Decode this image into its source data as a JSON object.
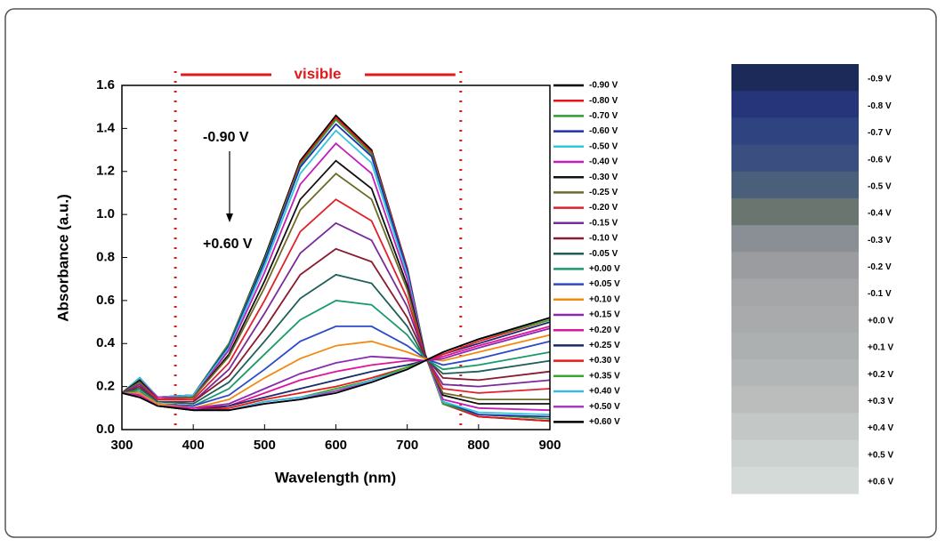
{
  "chart_data": {
    "type": "line",
    "x_label": "Wavelength (nm)",
    "y_label": "Absorbance (a.u.)",
    "xlim": [
      300,
      900
    ],
    "ylim": [
      0,
      1.6
    ],
    "xticks": [
      300,
      400,
      500,
      600,
      700,
      800,
      900
    ],
    "yticks": [
      {
        "value": 0,
        "label": "0.0"
      },
      0.2,
      0.4,
      0.6,
      0.8,
      {
        "value": 1,
        "label": "1.0"
      },
      1.2,
      1.4,
      1.6
    ],
    "annotations": {
      "range_label": "visible",
      "visible_range": [
        375,
        775
      ],
      "from_label": "-0.90 V",
      "to_label": "+0.60 V"
    },
    "x": [
      300,
      325,
      350,
      400,
      450,
      500,
      550,
      600,
      650,
      700,
      725,
      750,
      800,
      900
    ],
    "series": [
      {
        "name": "-0.90 V",
        "color": "#000000",
        "values": [
          0.17,
          0.24,
          0.15,
          0.16,
          0.4,
          0.8,
          1.25,
          1.46,
          1.3,
          0.75,
          0.35,
          0.12,
          0.06,
          0.04
        ]
      },
      {
        "name": "-0.80 V",
        "color": "#e8141c",
        "values": [
          0.17,
          0.24,
          0.15,
          0.16,
          0.4,
          0.79,
          1.24,
          1.45,
          1.29,
          0.75,
          0.35,
          0.12,
          0.06,
          0.04
        ]
      },
      {
        "name": "-0.70 V",
        "color": "#2e9e2e",
        "values": [
          0.17,
          0.24,
          0.15,
          0.16,
          0.4,
          0.79,
          1.23,
          1.44,
          1.28,
          0.74,
          0.35,
          0.12,
          0.07,
          0.05
        ]
      },
      {
        "name": "-0.60 V",
        "color": "#1f2fb0",
        "values": [
          0.17,
          0.24,
          0.15,
          0.16,
          0.39,
          0.78,
          1.22,
          1.42,
          1.27,
          0.74,
          0.35,
          0.13,
          0.07,
          0.06
        ]
      },
      {
        "name": "-0.50 V",
        "color": "#31c6d8",
        "values": [
          0.17,
          0.24,
          0.15,
          0.16,
          0.38,
          0.76,
          1.19,
          1.39,
          1.24,
          0.72,
          0.35,
          0.13,
          0.08,
          0.07
        ]
      },
      {
        "name": "-0.40 V",
        "color": "#c21fb8",
        "values": [
          0.17,
          0.23,
          0.15,
          0.15,
          0.37,
          0.73,
          1.14,
          1.33,
          1.19,
          0.7,
          0.35,
          0.14,
          0.1,
          0.09
        ]
      },
      {
        "name": "-0.30 V",
        "color": "#111111",
        "values": [
          0.17,
          0.23,
          0.14,
          0.15,
          0.35,
          0.69,
          1.07,
          1.25,
          1.12,
          0.67,
          0.35,
          0.16,
          0.12,
          0.12
        ]
      },
      {
        "name": "-0.25 V",
        "color": "#6b6b2a",
        "values": [
          0.17,
          0.22,
          0.14,
          0.15,
          0.34,
          0.66,
          1.02,
          1.19,
          1.07,
          0.65,
          0.34,
          0.17,
          0.14,
          0.14
        ]
      },
      {
        "name": "-0.20 V",
        "color": "#e0202a",
        "values": [
          0.17,
          0.21,
          0.14,
          0.14,
          0.31,
          0.6,
          0.92,
          1.07,
          0.97,
          0.61,
          0.34,
          0.19,
          0.17,
          0.19
        ]
      },
      {
        "name": "-0.15 V",
        "color": "#7a2a9a",
        "values": [
          0.17,
          0.21,
          0.13,
          0.13,
          0.28,
          0.54,
          0.82,
          0.96,
          0.88,
          0.57,
          0.34,
          0.21,
          0.2,
          0.23
        ]
      },
      {
        "name": "-0.10 V",
        "color": "#8a1a30",
        "values": [
          0.17,
          0.2,
          0.13,
          0.13,
          0.25,
          0.47,
          0.72,
          0.84,
          0.78,
          0.52,
          0.34,
          0.24,
          0.23,
          0.27
        ]
      },
      {
        "name": "-0.05 V",
        "color": "#1f5f5a",
        "values": [
          0.17,
          0.19,
          0.13,
          0.12,
          0.22,
          0.41,
          0.61,
          0.72,
          0.68,
          0.48,
          0.33,
          0.26,
          0.27,
          0.32
        ]
      },
      {
        "name": "+0.00 V",
        "color": "#1a9a6a",
        "values": [
          0.17,
          0.18,
          0.12,
          0.11,
          0.19,
          0.35,
          0.51,
          0.6,
          0.58,
          0.44,
          0.33,
          0.28,
          0.3,
          0.36
        ]
      },
      {
        "name": "+0.05 V",
        "color": "#2a4ac8",
        "values": [
          0.17,
          0.17,
          0.12,
          0.11,
          0.16,
          0.28,
          0.41,
          0.48,
          0.48,
          0.39,
          0.33,
          0.3,
          0.33,
          0.41
        ]
      },
      {
        "name": "+0.10 V",
        "color": "#f08a10",
        "values": [
          0.17,
          0.17,
          0.12,
          0.1,
          0.14,
          0.24,
          0.33,
          0.39,
          0.41,
          0.36,
          0.33,
          0.32,
          0.36,
          0.44
        ]
      },
      {
        "name": "+0.15 V",
        "color": "#8a2ab0",
        "values": [
          0.17,
          0.16,
          0.11,
          0.1,
          0.12,
          0.19,
          0.26,
          0.31,
          0.34,
          0.33,
          0.32,
          0.33,
          0.38,
          0.47
        ]
      },
      {
        "name": "+0.20 V",
        "color": "#e0149a",
        "values": [
          0.17,
          0.16,
          0.11,
          0.1,
          0.11,
          0.17,
          0.23,
          0.27,
          0.3,
          0.32,
          0.32,
          0.34,
          0.39,
          0.48
        ]
      },
      {
        "name": "+0.25 V",
        "color": "#1a2a6a",
        "values": [
          0.17,
          0.15,
          0.11,
          0.09,
          0.11,
          0.15,
          0.19,
          0.23,
          0.27,
          0.3,
          0.32,
          0.35,
          0.4,
          0.5
        ]
      },
      {
        "name": "+0.30 V",
        "color": "#e81a1a",
        "values": [
          0.17,
          0.15,
          0.11,
          0.09,
          0.1,
          0.14,
          0.17,
          0.2,
          0.24,
          0.29,
          0.32,
          0.35,
          0.41,
          0.51
        ]
      },
      {
        "name": "+0.35 V",
        "color": "#3aaa2a",
        "values": [
          0.17,
          0.15,
          0.11,
          0.09,
          0.09,
          0.13,
          0.15,
          0.19,
          0.23,
          0.29,
          0.32,
          0.36,
          0.42,
          0.51
        ]
      },
      {
        "name": "+0.40 V",
        "color": "#3ab8e0",
        "values": [
          0.17,
          0.15,
          0.11,
          0.09,
          0.09,
          0.13,
          0.15,
          0.18,
          0.23,
          0.28,
          0.32,
          0.36,
          0.42,
          0.52
        ]
      },
      {
        "name": "+0.50 V",
        "color": "#a040c0",
        "values": [
          0.17,
          0.15,
          0.11,
          0.09,
          0.09,
          0.12,
          0.14,
          0.18,
          0.22,
          0.28,
          0.32,
          0.36,
          0.42,
          0.52
        ]
      },
      {
        "name": "+0.60 V",
        "color": "#000000",
        "values": [
          0.17,
          0.15,
          0.11,
          0.09,
          0.09,
          0.12,
          0.14,
          0.17,
          0.22,
          0.28,
          0.32,
          0.36,
          0.42,
          0.52
        ]
      }
    ]
  },
  "swatches": [
    {
      "label": "-0.9 V",
      "color": "#1c2a5a"
    },
    {
      "label": "-0.8 V",
      "color": "#26357a"
    },
    {
      "label": "-0.7 V",
      "color": "#2f4380"
    },
    {
      "label": "-0.6 V",
      "color": "#3a4f80"
    },
    {
      "label": "-0.5 V",
      "color": "#4a5f7a"
    },
    {
      "label": "-0.4 V",
      "color": "#6a7570"
    },
    {
      "label": "-0.3 V",
      "color": "#8a8f96"
    },
    {
      "label": "-0.2 V",
      "color": "#9a9c9f"
    },
    {
      "label": "-0.1 V",
      "color": "#a4a6a8"
    },
    {
      "label": "+0.0 V",
      "color": "#a8aaac"
    },
    {
      "label": "+0.1 V",
      "color": "#adb0b1"
    },
    {
      "label": "+0.2 V",
      "color": "#b3b6b6"
    },
    {
      "label": "+0.3 V",
      "color": "#babdbc"
    },
    {
      "label": "+0.4 V",
      "color": "#c3c8c6"
    },
    {
      "label": "+0.5 V",
      "color": "#cbd2cf"
    },
    {
      "label": "+0.6 V",
      "color": "#d3dad7"
    }
  ]
}
